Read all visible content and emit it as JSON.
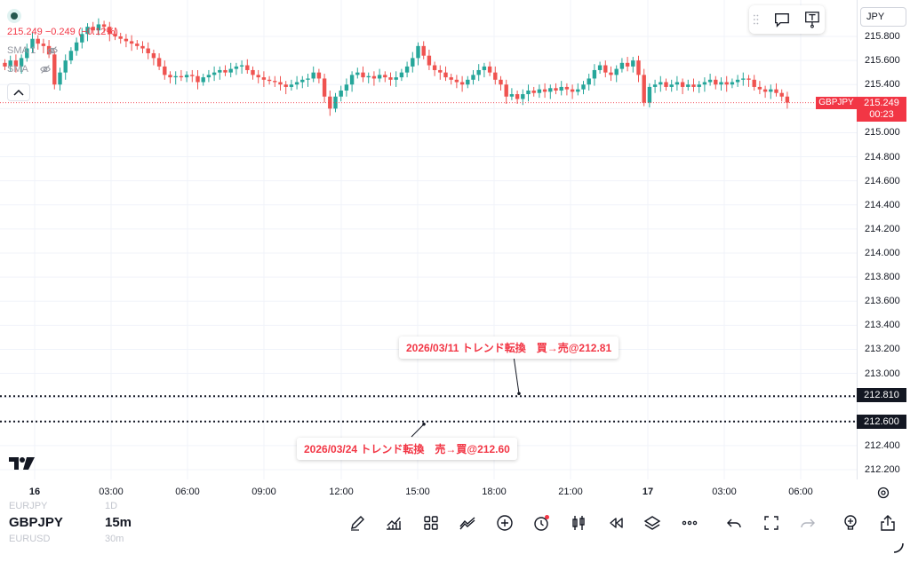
{
  "legend": {
    "price": "215.249 −0.249 (−0.12%)",
    "indicators": [
      {
        "label": "SMA 1"
      },
      {
        "label": "SMA"
      }
    ]
  },
  "price_scale": {
    "currency": "JPY",
    "ticks": [
      "215.800",
      "215.600",
      "215.400",
      "215.200",
      "215.000",
      "214.800",
      "214.600",
      "214.400",
      "214.200",
      "214.000",
      "213.800",
      "213.600",
      "213.400",
      "213.200",
      "213.000",
      "212.800",
      "212.600",
      "212.400",
      "212.200"
    ],
    "tick_values": [
      215.8,
      215.6,
      215.4,
      215.2,
      215.0,
      214.8,
      214.6,
      214.4,
      214.2,
      214.0,
      213.8,
      213.6,
      213.4,
      213.2,
      213.0,
      212.8,
      212.6,
      212.4,
      212.2
    ],
    "current_price": "215.249",
    "countdown": "00:23",
    "symbol_tag": "GBPJPY"
  },
  "horizontal_lines": [
    {
      "label": "212.810",
      "price": 212.81
    },
    {
      "label": "212.600",
      "price": 212.6
    }
  ],
  "annotations": [
    {
      "text": "2026/03/11 トレンド転換　買→売@212.81"
    },
    {
      "text": "2026/03/24 トレンド転換　売→買@212.60"
    }
  ],
  "time_axis": {
    "labels": [
      {
        "text": "16",
        "bold": true
      },
      {
        "text": "03:00",
        "bold": false
      },
      {
        "text": "06:00",
        "bold": false
      },
      {
        "text": "09:00",
        "bold": false
      },
      {
        "text": "12:00",
        "bold": false
      },
      {
        "text": "15:00",
        "bold": false
      },
      {
        "text": "18:00",
        "bold": false
      },
      {
        "text": "21:00",
        "bold": false
      },
      {
        "text": "17",
        "bold": true
      },
      {
        "text": "03:00",
        "bold": false
      },
      {
        "text": "06:00",
        "bold": false
      }
    ]
  },
  "bottom_bar": {
    "symbol": "GBPJPY",
    "interval": "15m",
    "prev_symbol": "EURJPY",
    "prev_interval": "1D",
    "next_symbol": "EURUSD",
    "next_interval": "30m",
    "tools": [
      "pen-icon",
      "indicators-icon",
      "grid-icon",
      "compare-icon",
      "add-icon",
      "alert-icon",
      "candle-type-icon",
      "replay-icon",
      "layers-icon",
      "more-icon",
      "undo-icon",
      "fullscreen-icon",
      "redo-icon",
      "lightbulb-icon",
      "share-icon"
    ]
  },
  "colors": {
    "up": "#26a69a",
    "down": "#ef5350",
    "annotation_text": "#f23645",
    "price_tag": "#f23645"
  },
  "chart_data": {
    "type": "candlestick",
    "symbol": "GBPJPY",
    "interval": "15m",
    "ylim": [
      212.15,
      215.95
    ],
    "x_range": [
      "16 00:00",
      "17 06:30"
    ],
    "closes": [
      215.55,
      215.6,
      215.55,
      215.62,
      215.7,
      215.78,
      215.74,
      215.72,
      215.65,
      215.4,
      215.5,
      215.6,
      215.68,
      215.75,
      215.82,
      215.88,
      215.85,
      215.9,
      215.88,
      215.82,
      215.8,
      215.78,
      215.76,
      215.74,
      215.72,
      215.7,
      215.66,
      215.62,
      215.55,
      215.48,
      215.46,
      215.47,
      215.46,
      215.48,
      215.47,
      215.42,
      215.46,
      215.48,
      215.5,
      215.52,
      215.5,
      215.53,
      215.55,
      215.56,
      215.52,
      215.48,
      215.46,
      215.44,
      215.43,
      215.42,
      215.4,
      215.38,
      215.4,
      215.42,
      215.44,
      215.45,
      215.5,
      215.45,
      215.3,
      215.2,
      215.3,
      215.35,
      215.4,
      215.48,
      215.5,
      215.46,
      215.47,
      215.45,
      215.48,
      215.46,
      215.44,
      215.46,
      215.5,
      215.55,
      215.62,
      215.72,
      215.64,
      215.56,
      215.52,
      215.5,
      215.46,
      215.44,
      215.42,
      215.4,
      215.44,
      215.48,
      215.52,
      215.55,
      215.5,
      215.44,
      215.4,
      215.3,
      215.32,
      215.28,
      215.32,
      215.35,
      215.33,
      215.36,
      215.34,
      215.37,
      215.35,
      215.38,
      215.36,
      215.34,
      215.36,
      215.4,
      215.45,
      215.52,
      215.56,
      215.5,
      215.48,
      215.53,
      215.58,
      215.55,
      215.6,
      215.48,
      215.25,
      215.38,
      215.4,
      215.42,
      215.38,
      215.4,
      215.42,
      215.38,
      215.4,
      215.38,
      215.4,
      215.42,
      215.44,
      215.4,
      215.42,
      215.4,
      215.42,
      215.44,
      215.45,
      215.44,
      215.38,
      215.36,
      215.34,
      215.36,
      215.33,
      215.3,
      215.25
    ]
  }
}
